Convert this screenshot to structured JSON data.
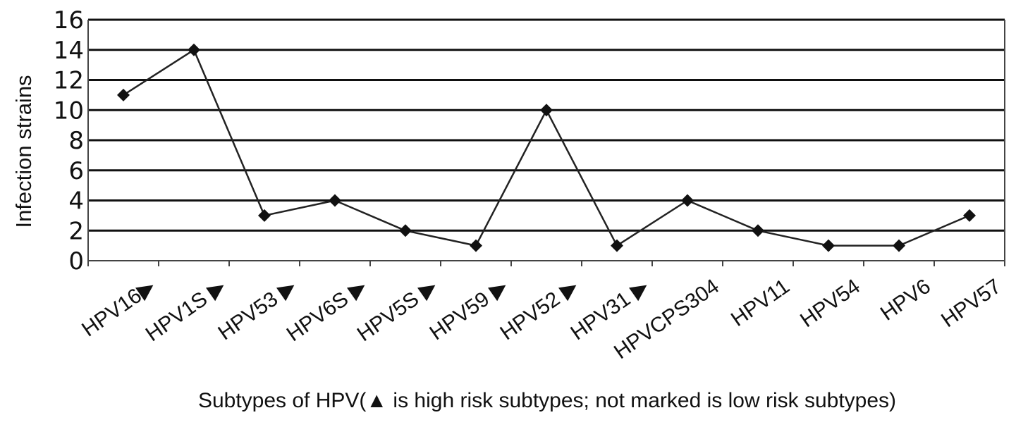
{
  "chart_data": {
    "type": "line",
    "title": "",
    "xlabel": "Subtypes of HPV(▲ is high risk subtypes; not marked is low risk subtypes)",
    "ylabel": "Infection strains",
    "ylim": [
      0,
      16
    ],
    "yticks": [
      0,
      2,
      4,
      6,
      8,
      10,
      12,
      14,
      16
    ],
    "grid": true,
    "marker": "diamond",
    "legend": "none",
    "categories": [
      "HPV16▶",
      "HPV1S ▶",
      "HPV53 ▶",
      "HPV6S ▶",
      "HPV5S ▶",
      "HPV59 ▶",
      "HPV52 ▶",
      "HPV31 ▶",
      "HPVCPS304",
      "HPV11",
      "HPV54",
      "HPV6",
      "HPV57"
    ],
    "series": [
      {
        "values": [
          11,
          14,
          3,
          4,
          2,
          1,
          10,
          1,
          4,
          2,
          1,
          1,
          3
        ]
      }
    ],
    "colors": {
      "line": "#222222",
      "marker": "#111111",
      "grid": "#111111",
      "axis": "#444444",
      "text": "#111111"
    }
  }
}
